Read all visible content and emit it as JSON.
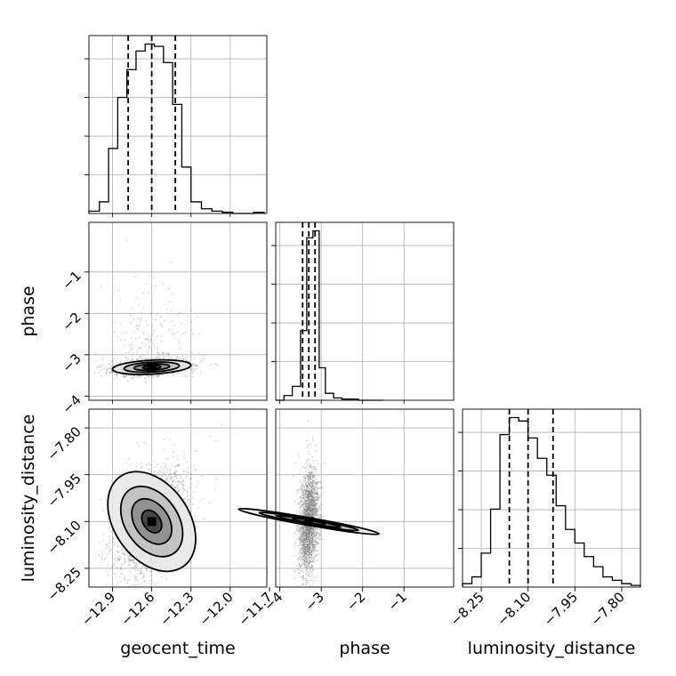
{
  "chart_data": {
    "type": "corner",
    "parameters": [
      {
        "name": "geocent_time",
        "xlabel": "geocent_time",
        "ticks": [
          -12.9,
          -12.6,
          -12.3,
          -12.0,
          -11.7
        ],
        "tick_labels": [
          "−12.9",
          "−12.6",
          "−12.3",
          "−12.0",
          "−11.7"
        ],
        "range": [
          -13.08,
          -11.72
        ],
        "quantiles": [
          -12.78,
          -12.6,
          -12.42
        ],
        "hist_bins": [
          -13.08,
          -13.0,
          -12.93,
          -12.86,
          -12.79,
          -12.72,
          -12.65,
          -12.58,
          -12.51,
          -12.44,
          -12.37,
          -12.3,
          -12.22,
          -12.14,
          -12.06,
          -11.98,
          -11.9,
          -11.82,
          -11.74
        ],
        "hist_counts": [
          1,
          5,
          28,
          50,
          62,
          70,
          73,
          72,
          65,
          47,
          20,
          5,
          2,
          1,
          0.5,
          0,
          0,
          0.5
        ]
      },
      {
        "name": "phase",
        "xlabel": "phase",
        "ylabel": "phase",
        "ticks": [
          -4,
          -3,
          -2,
          -1
        ],
        "tick_labels": [
          "−4",
          "−3",
          "−2",
          "−1"
        ],
        "range": [
          -4.1,
          0.2
        ],
        "quantiles": [
          -3.45,
          -3.3,
          -3.15
        ],
        "hist_bins": [
          -4.1,
          -3.9,
          -3.7,
          -3.5,
          -3.35,
          -3.2,
          -3.05,
          -2.9,
          -2.7,
          -2.5,
          -2.3,
          -2.1,
          -1.9,
          -1.5
        ],
        "hist_counts": [
          0,
          2,
          6,
          30,
          70,
          73,
          14,
          3,
          1,
          0.5,
          0.5,
          0,
          0
        ]
      },
      {
        "name": "luminosity_distance",
        "xlabel": "luminosity_distance",
        "ylabel": "luminosity_distance",
        "ticks": [
          -8.25,
          -8.1,
          -7.95,
          -7.8
        ],
        "tick_labels": [
          "−8.25",
          "−8.10",
          "−7.95",
          "−7.80"
        ],
        "range": [
          -8.31,
          -7.74
        ],
        "quantiles": [
          -8.16,
          -8.1,
          -8.02
        ],
        "hist_bins": [
          -8.31,
          -8.28,
          -8.25,
          -8.22,
          -8.19,
          -8.16,
          -8.13,
          -8.1,
          -8.07,
          -8.04,
          -8.01,
          -7.98,
          -7.95,
          -7.92,
          -7.89,
          -7.86,
          -7.83,
          -7.8,
          -7.77,
          -7.74
        ],
        "hist_counts": [
          1,
          3,
          10,
          23,
          45,
          50,
          49,
          44,
          38,
          33,
          24,
          17,
          13,
          9,
          6,
          3,
          2,
          1,
          0.5
        ]
      }
    ],
    "contour_levels": [
      0.118,
      0.393,
      0.675,
      0.865
    ],
    "scatter_color": "#808080",
    "line_color": "#000000",
    "grid": true
  }
}
